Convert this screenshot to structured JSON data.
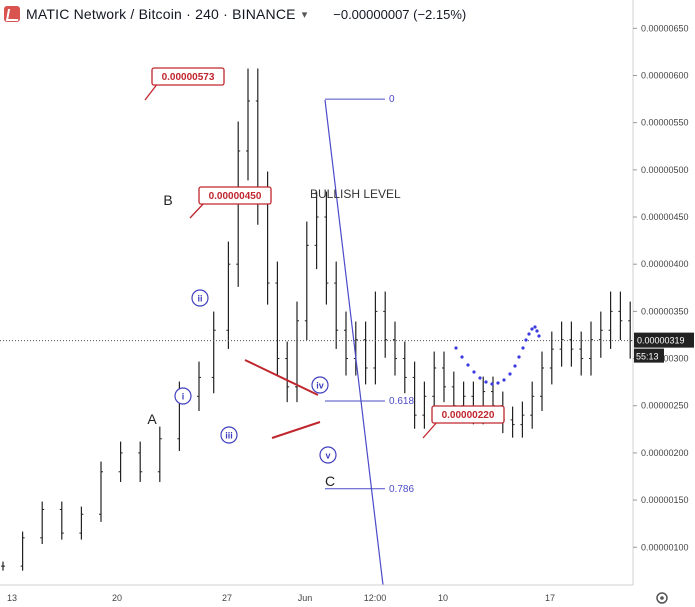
{
  "header": {
    "symbol": "MATIC Network / Bitcoin · 240 · BINANCE",
    "change": "−0.00000007 (−2.15%)",
    "dropdown_icon": "chevron-down-icon",
    "logo_icon": "exchange-logo-icon"
  },
  "price_axis": {
    "labels": [
      "0.00000650",
      "0.00000600",
      "0.00000550",
      "0.00000500",
      "0.00000450",
      "0.00000400",
      "0.00000350",
      "0.00000300",
      "0.00000250",
      "0.00000200",
      "0.00000150",
      "0.00000100"
    ],
    "current_price": "0.00000319",
    "countdown": "55:13"
  },
  "time_axis": {
    "labels": [
      "13",
      "20",
      "27",
      "Jun",
      "12:00",
      "10",
      "17"
    ]
  },
  "settings_icon": "gear-icon",
  "colors": {
    "candles": "#222222",
    "wave_labels": "#3f3fbf",
    "fib": "#4b4bc8",
    "callout": "#c0262d",
    "projection": "#3a3ae0"
  },
  "chart_data": {
    "type": "ohlc",
    "price_range": [
      6e-07,
      6.8e-06
    ],
    "price_series_approx": [
      [
        0,
        8e-07
      ],
      [
        4,
        1.1e-06
      ],
      [
        8,
        1.4e-06
      ],
      [
        12,
        1.15e-06
      ],
      [
        16,
        1.35e-06
      ],
      [
        20,
        1.8e-06
      ],
      [
        24,
        2e-06
      ],
      [
        28,
        1.8e-06
      ],
      [
        32,
        2.15e-06
      ],
      [
        36,
        2.6e-06
      ],
      [
        40,
        2.8e-06
      ],
      [
        43,
        3.3e-06
      ],
      [
        46,
        4e-06
      ],
      [
        48,
        5.2e-06
      ],
      [
        50,
        5.73e-06
      ],
      [
        52,
        4.7e-06
      ],
      [
        54,
        3.8e-06
      ],
      [
        56,
        3e-06
      ],
      [
        58,
        2.7e-06
      ],
      [
        60,
        3.4e-06
      ],
      [
        62,
        4.2e-06
      ],
      [
        64,
        4.5e-06
      ],
      [
        66,
        3.8e-06
      ],
      [
        68,
        3.3e-06
      ],
      [
        70,
        3e-06
      ],
      [
        72,
        3.2e-06
      ],
      [
        74,
        2.9e-06
      ],
      [
        76,
        3.5e-06
      ],
      [
        78,
        3.2e-06
      ],
      [
        80,
        3e-06
      ],
      [
        82,
        2.8e-06
      ],
      [
        84,
        2.4e-06
      ],
      [
        86,
        2.6e-06
      ],
      [
        88,
        2.9e-06
      ],
      [
        90,
        2.7e-06
      ],
      [
        92,
        2.5e-06
      ],
      [
        94,
        2.6e-06
      ],
      [
        96,
        2.45e-06
      ],
      [
        98,
        2.65e-06
      ],
      [
        100,
        2.5e-06
      ],
      [
        102,
        2.35e-06
      ],
      [
        104,
        2.3e-06
      ],
      [
        106,
        2.4e-06
      ],
      [
        108,
        2.6e-06
      ],
      [
        110,
        2.9e-06
      ],
      [
        112,
        3.1e-06
      ],
      [
        114,
        3.2e-06
      ],
      [
        116,
        3.1e-06
      ],
      [
        118,
        3e-06
      ],
      [
        120,
        3.2e-06
      ],
      [
        122,
        3.3e-06
      ],
      [
        124,
        3.5e-06
      ],
      [
        126,
        3.4e-06
      ],
      [
        128,
        3.19e-06
      ]
    ],
    "projection_points": [
      [
        129,
        3.12e-06
      ],
      [
        132,
        2.9e-06
      ],
      [
        135,
        2.78e-06
      ],
      [
        138,
        2.82e-06
      ],
      [
        141,
        3e-06
      ],
      [
        144,
        3.3e-06
      ]
    ],
    "callouts": [
      {
        "text": "0.00000573",
        "price": 5.73e-06
      },
      {
        "text": "0.00000450",
        "price": 4.5e-06
      },
      {
        "text": "0.00000220",
        "price": 2.2e-06
      }
    ],
    "wave_labels": {
      "A": "A",
      "B": "B",
      "C": "C",
      "i": "i",
      "ii": "ii",
      "iii": "iii",
      "iv": "iv",
      "v": "v"
    },
    "fib_levels": [
      {
        "label": "0",
        "price": 5.75e-06
      },
      {
        "label": "0.618",
        "price": 2.55e-06
      },
      {
        "label": "0.786",
        "price": 1.62e-06
      }
    ],
    "annotation": "BULLISH LEVEL"
  }
}
